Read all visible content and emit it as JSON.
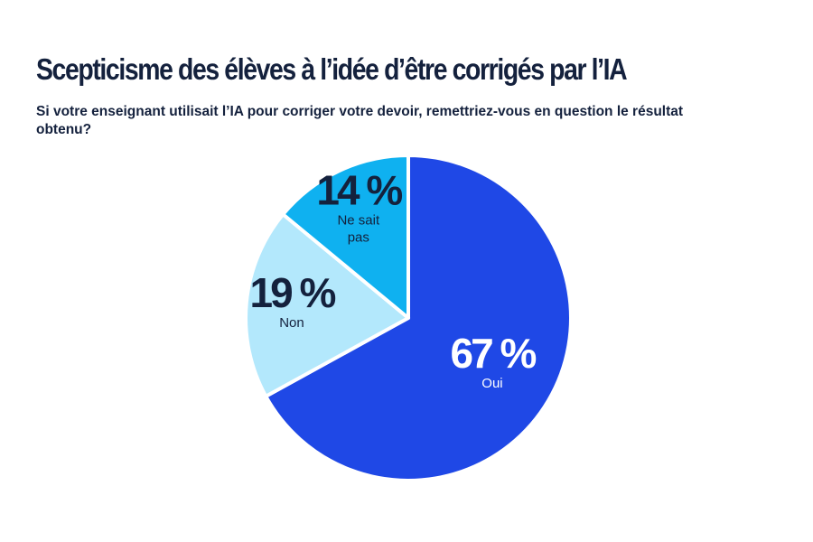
{
  "header": {
    "title": "Scepticisme des élèves à l’idée d’être corrigés par l’IA",
    "subtitle": "Si votre enseignant utilisait l’IA pour corriger votre devoir, remettriez-vous en question le résultat obtenu?"
  },
  "chart_data": {
    "type": "pie",
    "title": "Scepticisme des élèves à l’idée d’être corrigés par l’IA",
    "subtitle": "Si votre enseignant utilisait l’IA pour corriger votre devoir, remettriez-vous en question le résultat obtenu?",
    "unit": "%",
    "start": "12 o'clock",
    "direction": "clockwise",
    "legend": "none (labels inside slices)",
    "slices": [
      {
        "label": "Oui",
        "value": 67,
        "display": "67 %",
        "color": "#1f48e6",
        "text_color": "#ffffff",
        "label_lines": [
          "Oui"
        ]
      },
      {
        "label": "Non",
        "value": 19,
        "display": "19 %",
        "color": "#b3e8fc",
        "text_color": "#14213d",
        "label_lines": [
          "Non"
        ]
      },
      {
        "label": "Ne sait pas",
        "value": 14,
        "display": "14 %",
        "color": "#0fb1f0",
        "text_color": "#14213d",
        "label_lines": [
          "Ne sait",
          "pas"
        ]
      }
    ]
  },
  "colors": {
    "title": "#14213d",
    "slice_border": "#ffffff",
    "background": "#ffffff"
  }
}
